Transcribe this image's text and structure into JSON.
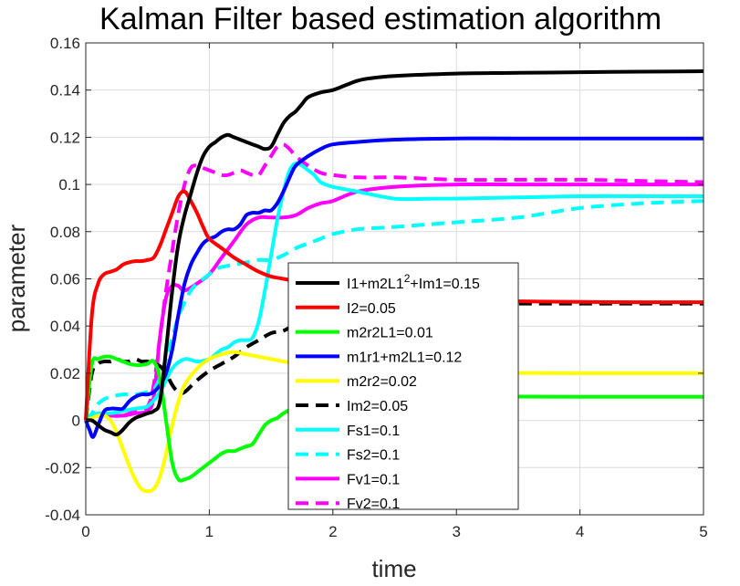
{
  "chart_data": {
    "type": "line",
    "title": "Kalman Filter based estimation algorithm",
    "xlabel": "time",
    "ylabel": "parameter",
    "xlim": [
      0,
      5
    ],
    "ylim": [
      -0.04,
      0.16
    ],
    "xticks": [
      0,
      1,
      2,
      3,
      4,
      5
    ],
    "yticks": [
      -0.04,
      -0.02,
      0,
      0.02,
      0.04,
      0.06,
      0.08,
      0.1,
      0.12,
      0.14,
      0.16
    ],
    "xtick_labels": [
      "0",
      "1",
      "2",
      "3",
      "4",
      "5"
    ],
    "ytick_labels": [
      "-0.04",
      "-0.02",
      "0",
      "0.02",
      "0.04",
      "0.06",
      "0.08",
      "0.1",
      "0.12",
      "0.14",
      "0.16"
    ],
    "grid": true,
    "legend_position": "center",
    "series": [
      {
        "name": "I1+m2L1",
        "name_sup": "2",
        "name_tail": "+Im1=0.15",
        "color": "#000000",
        "dash": "solid",
        "x": [
          0,
          0.05,
          0.1,
          0.15,
          0.2,
          0.25,
          0.3,
          0.35,
          0.4,
          0.45,
          0.5,
          0.55,
          0.6,
          0.65,
          0.7,
          0.75,
          0.8,
          0.85,
          0.9,
          0.95,
          1.0,
          1.05,
          1.1,
          1.15,
          1.2,
          1.25,
          1.3,
          1.35,
          1.4,
          1.45,
          1.5,
          1.55,
          1.6,
          1.65,
          1.7,
          1.75,
          1.8,
          1.9,
          2.0,
          2.1,
          2.2,
          2.3,
          2.5,
          3.0,
          3.5,
          4.0,
          4.5,
          5.0
        ],
        "y": [
          0.0,
          0.0,
          -0.002,
          -0.004,
          -0.005,
          -0.006,
          -0.004,
          -0.001,
          0.001,
          0.002,
          0.003,
          0.004,
          0.008,
          0.03,
          0.055,
          0.075,
          0.087,
          0.096,
          0.105,
          0.112,
          0.116,
          0.118,
          0.12,
          0.121,
          0.12,
          0.119,
          0.118,
          0.117,
          0.116,
          0.115,
          0.116,
          0.121,
          0.126,
          0.129,
          0.131,
          0.134,
          0.137,
          0.139,
          0.14,
          0.142,
          0.144,
          0.145,
          0.146,
          0.147,
          0.1473,
          0.1476,
          0.1478,
          0.148
        ]
      },
      {
        "name": "I2=0.05",
        "color": "#ff0000",
        "dash": "solid",
        "x": [
          0,
          0.05,
          0.1,
          0.15,
          0.2,
          0.25,
          0.3,
          0.35,
          0.4,
          0.45,
          0.5,
          0.55,
          0.6,
          0.65,
          0.7,
          0.75,
          0.8,
          0.85,
          0.9,
          0.95,
          1.0,
          1.1,
          1.2,
          1.3,
          1.4,
          1.5,
          1.6,
          1.8,
          2.0,
          2.5,
          3.0,
          3.5,
          4.0,
          4.5,
          5.0
        ],
        "y": [
          0.0,
          0.045,
          0.058,
          0.062,
          0.063,
          0.064,
          0.066,
          0.067,
          0.0675,
          0.0675,
          0.068,
          0.069,
          0.074,
          0.081,
          0.088,
          0.095,
          0.097,
          0.093,
          0.088,
          0.082,
          0.077,
          0.073,
          0.069,
          0.066,
          0.063,
          0.061,
          0.06,
          0.058,
          0.056,
          0.053,
          0.051,
          0.0505,
          0.0502,
          0.0501,
          0.0501
        ]
      },
      {
        "name": "m2r2L1=0.01",
        "color": "#00ff00",
        "dash": "solid",
        "x": [
          0,
          0.05,
          0.1,
          0.15,
          0.2,
          0.25,
          0.3,
          0.35,
          0.4,
          0.45,
          0.5,
          0.55,
          0.6,
          0.65,
          0.7,
          0.75,
          0.8,
          0.85,
          0.9,
          0.95,
          1.0,
          1.05,
          1.1,
          1.15,
          1.2,
          1.25,
          1.3,
          1.35,
          1.4,
          1.45,
          1.5,
          1.55,
          1.6,
          1.7,
          1.8,
          2.0,
          2.2,
          2.5,
          3.0,
          3.5,
          4.0,
          4.5,
          5.0
        ],
        "y": [
          0.0,
          0.024,
          0.026,
          0.027,
          0.027,
          0.026,
          0.025,
          0.024,
          0.0235,
          0.0235,
          0.024,
          0.025,
          0.018,
          0.0,
          -0.018,
          -0.025,
          -0.025,
          -0.024,
          -0.022,
          -0.02,
          -0.018,
          -0.016,
          -0.014,
          -0.013,
          -0.013,
          -0.012,
          -0.011,
          -0.01,
          -0.006,
          -0.002,
          0.0,
          0.001,
          0.003,
          0.006,
          0.009,
          0.011,
          0.012,
          0.011,
          0.0103,
          0.0101,
          0.01,
          0.01,
          0.01
        ]
      },
      {
        "name": "m1r1+m2L1=0.12",
        "color": "#0000ff",
        "dash": "solid",
        "x": [
          0,
          0.03,
          0.06,
          0.1,
          0.15,
          0.2,
          0.25,
          0.3,
          0.35,
          0.4,
          0.45,
          0.5,
          0.55,
          0.6,
          0.65,
          0.7,
          0.75,
          0.8,
          0.85,
          0.9,
          0.95,
          1.0,
          1.05,
          1.1,
          1.15,
          1.2,
          1.25,
          1.3,
          1.35,
          1.4,
          1.45,
          1.5,
          1.55,
          1.6,
          1.65,
          1.7,
          1.8,
          1.9,
          2.0,
          2.2,
          2.5,
          3.0,
          3.5,
          4.0,
          4.5,
          5.0
        ],
        "y": [
          0.0,
          -0.004,
          -0.007,
          -0.002,
          0.004,
          0.005,
          0.005,
          0.005,
          0.008,
          0.01,
          0.011,
          0.011,
          0.012,
          0.015,
          0.02,
          0.03,
          0.045,
          0.058,
          0.066,
          0.071,
          0.075,
          0.077,
          0.078,
          0.08,
          0.081,
          0.081,
          0.083,
          0.087,
          0.088,
          0.088,
          0.089,
          0.089,
          0.092,
          0.097,
          0.103,
          0.108,
          0.112,
          0.115,
          0.117,
          0.118,
          0.119,
          0.1195,
          0.1195,
          0.1195,
          0.1195,
          0.1195
        ]
      },
      {
        "name": "m2r2=0.02",
        "color": "#ffff00",
        "dash": "solid",
        "x": [
          0,
          0.05,
          0.1,
          0.15,
          0.2,
          0.25,
          0.3,
          0.35,
          0.4,
          0.45,
          0.5,
          0.55,
          0.6,
          0.65,
          0.7,
          0.75,
          0.8,
          0.9,
          1.0,
          1.1,
          1.2,
          1.3,
          1.4,
          1.5,
          1.6,
          1.7,
          1.8,
          2.0,
          2.5,
          3.0,
          3.5,
          4.0,
          4.5,
          5.0
        ],
        "y": [
          0.0,
          0.001,
          0.002,
          0.002,
          0.0,
          -0.005,
          -0.012,
          -0.019,
          -0.025,
          -0.029,
          -0.03,
          -0.029,
          -0.024,
          -0.014,
          -0.002,
          0.008,
          0.015,
          0.022,
          0.026,
          0.028,
          0.029,
          0.028,
          0.027,
          0.026,
          0.025,
          0.024,
          0.022,
          0.021,
          0.0205,
          0.0202,
          0.0201,
          0.02,
          0.02,
          0.02
        ]
      },
      {
        "name": "Im2=0.05",
        "color": "#000000",
        "dash": "dash",
        "x": [
          0,
          0.05,
          0.1,
          0.15,
          0.2,
          0.25,
          0.3,
          0.35,
          0.4,
          0.45,
          0.5,
          0.55,
          0.6,
          0.65,
          0.7,
          0.75,
          0.8,
          0.9,
          1.0,
          1.1,
          1.2,
          1.3,
          1.4,
          1.5,
          1.6,
          1.7,
          1.8,
          2.0,
          2.5,
          3.0,
          3.5,
          4.0,
          4.5,
          5.0
        ],
        "y": [
          0.0,
          0.02,
          0.024,
          0.025,
          0.025,
          0.026,
          0.025,
          0.025,
          0.026,
          0.025,
          0.025,
          0.024,
          0.023,
          0.02,
          0.015,
          0.012,
          0.012,
          0.017,
          0.021,
          0.024,
          0.027,
          0.031,
          0.034,
          0.037,
          0.038,
          0.041,
          0.044,
          0.047,
          0.049,
          0.0495,
          0.0495,
          0.0495,
          0.0495,
          0.0495
        ]
      },
      {
        "name": "Fs1=0.1",
        "color": "#00ffff",
        "dash": "solid",
        "x": [
          0,
          0.05,
          0.1,
          0.2,
          0.3,
          0.4,
          0.5,
          0.6,
          0.7,
          0.8,
          0.9,
          1.0,
          1.05,
          1.1,
          1.15,
          1.2,
          1.25,
          1.3,
          1.35,
          1.4,
          1.45,
          1.5,
          1.55,
          1.6,
          1.65,
          1.7,
          1.75,
          1.8,
          1.85,
          1.9,
          2.0,
          2.2,
          2.5,
          2.8,
          3.0,
          3.5,
          4.0,
          4.5,
          5.0
        ],
        "y": [
          0.0,
          0.002,
          0.003,
          0.003,
          0.004,
          0.005,
          0.006,
          0.012,
          0.022,
          0.026,
          0.025,
          0.026,
          0.028,
          0.03,
          0.031,
          0.033,
          0.034,
          0.034,
          0.035,
          0.042,
          0.055,
          0.07,
          0.085,
          0.097,
          0.106,
          0.109,
          0.108,
          0.106,
          0.104,
          0.101,
          0.099,
          0.097,
          0.094,
          0.094,
          0.094,
          0.0945,
          0.095,
          0.095,
          0.095
        ]
      },
      {
        "name": "Fs2=0.1",
        "color": "#00ffff",
        "dash": "dash",
        "x": [
          0,
          0.05,
          0.1,
          0.15,
          0.2,
          0.3,
          0.4,
          0.5,
          0.55,
          0.6,
          0.65,
          0.7,
          0.75,
          0.8,
          0.85,
          0.9,
          0.95,
          1.0,
          1.05,
          1.1,
          1.2,
          1.3,
          1.4,
          1.5,
          1.6,
          1.7,
          1.8,
          1.9,
          2.0,
          2.2,
          2.5,
          3.0,
          3.5,
          4.0,
          4.5,
          5.0
        ],
        "y": [
          0.0,
          0.003,
          0.007,
          0.009,
          0.01,
          0.011,
          0.011,
          0.012,
          0.013,
          0.018,
          0.026,
          0.035,
          0.044,
          0.05,
          0.055,
          0.058,
          0.06,
          0.062,
          0.064,
          0.065,
          0.066,
          0.067,
          0.068,
          0.068,
          0.07,
          0.073,
          0.075,
          0.077,
          0.079,
          0.081,
          0.082,
          0.084,
          0.086,
          0.09,
          0.092,
          0.093
        ]
      },
      {
        "name": "Fv1=0.1",
        "color": "#ff00ff",
        "dash": "solid",
        "x": [
          0,
          0.1,
          0.2,
          0.3,
          0.4,
          0.5,
          0.55,
          0.6,
          0.65,
          0.7,
          0.75,
          0.8,
          0.9,
          1.0,
          1.1,
          1.2,
          1.3,
          1.4,
          1.5,
          1.6,
          1.7,
          1.8,
          1.9,
          2.0,
          2.2,
          2.5,
          3.0,
          3.5,
          4.0,
          4.5,
          5.0
        ],
        "y": [
          0.0,
          0.002,
          0.002,
          0.002,
          0.003,
          0.004,
          0.01,
          0.035,
          0.052,
          0.057,
          0.057,
          0.055,
          0.058,
          0.062,
          0.069,
          0.076,
          0.083,
          0.086,
          0.086,
          0.086,
          0.087,
          0.09,
          0.092,
          0.093,
          0.097,
          0.099,
          0.1,
          0.1,
          0.1,
          0.1,
          0.1
        ]
      },
      {
        "name": "Fv2=0.1",
        "color": "#ff00ff",
        "dash": "dash",
        "x": [
          0,
          0.1,
          0.2,
          0.3,
          0.4,
          0.5,
          0.55,
          0.6,
          0.65,
          0.7,
          0.75,
          0.8,
          0.85,
          0.9,
          0.95,
          1.0,
          1.05,
          1.1,
          1.15,
          1.2,
          1.25,
          1.3,
          1.35,
          1.4,
          1.45,
          1.5,
          1.55,
          1.6,
          1.65,
          1.7,
          1.8,
          1.9,
          2.0,
          2.2,
          2.5,
          3.0,
          3.5,
          4.0,
          4.5,
          5.0
        ],
        "y": [
          0.0,
          0.002,
          0.002,
          0.002,
          0.004,
          0.006,
          0.015,
          0.035,
          0.055,
          0.072,
          0.088,
          0.1,
          0.107,
          0.108,
          0.107,
          0.106,
          0.105,
          0.104,
          0.104,
          0.105,
          0.106,
          0.105,
          0.104,
          0.104,
          0.108,
          0.112,
          0.116,
          0.117,
          0.115,
          0.112,
          0.108,
          0.105,
          0.104,
          0.103,
          0.103,
          0.102,
          0.102,
          0.102,
          0.1015,
          0.101
        ]
      }
    ]
  }
}
